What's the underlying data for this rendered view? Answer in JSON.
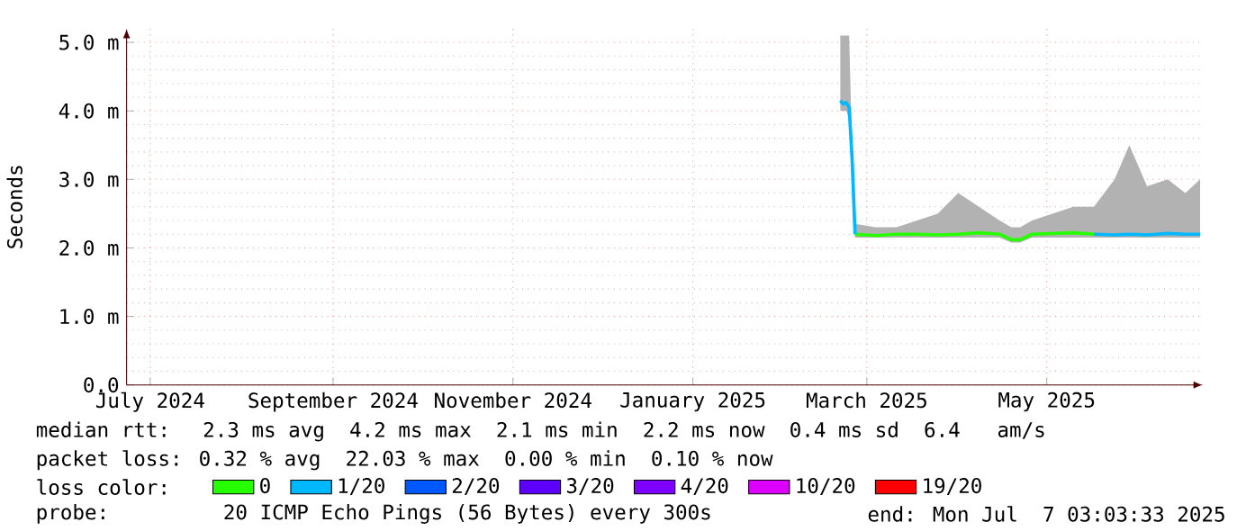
{
  "chart_data": {
    "type": "line",
    "ylabel": "Seconds",
    "legend_title": "loss color:",
    "legend": "bottom",
    "grid": true,
    "marker": "none",
    "line_style": "solid",
    "xlim": [
      "2024-07-07",
      "2025-07-07"
    ],
    "xticks": [
      {
        "value": "2024-07-15",
        "label": "July 2024"
      },
      {
        "value": "2024-09-15",
        "label": "September 2024"
      },
      {
        "value": "2024-11-15",
        "label": "November 2024"
      },
      {
        "value": "2025-01-15",
        "label": "January 2025"
      },
      {
        "value": "2025-03-15",
        "label": "March 2025"
      },
      {
        "value": "2025-05-15",
        "label": "May 2025"
      }
    ],
    "ylim": [
      0,
      5.2
    ],
    "yticks": [
      {
        "value": 0,
        "label": "0.0"
      },
      {
        "value": 1,
        "label": "1.0 m"
      },
      {
        "value": 2,
        "label": "2.0 m"
      },
      {
        "value": 3,
        "label": "3.0 m"
      },
      {
        "value": 4,
        "label": "4.0 m"
      },
      {
        "value": 5,
        "label": "5.0 m"
      }
    ],
    "x": [
      "2025-03-06",
      "2025-03-07",
      "2025-03-08",
      "2025-03-09",
      "2025-03-10",
      "2025-03-11",
      "2025-03-18",
      "2025-03-25",
      "2025-04-01",
      "2025-04-08",
      "2025-04-15",
      "2025-04-22",
      "2025-04-29",
      "2025-05-03",
      "2025-05-06",
      "2025-05-10",
      "2025-05-17",
      "2025-05-24",
      "2025-05-31",
      "2025-06-07",
      "2025-06-12",
      "2025-06-18",
      "2025-06-25",
      "2025-07-01",
      "2025-07-06"
    ],
    "series": [
      {
        "name": "0",
        "color": "#26ff00",
        "values": [
          null,
          null,
          null,
          null,
          null,
          2.2,
          2.18,
          2.2,
          2.2,
          2.19,
          2.2,
          2.22,
          2.2,
          2.12,
          2.12,
          2.2,
          2.21,
          2.22,
          2.2,
          null,
          null,
          null,
          null,
          null,
          null
        ],
        "lower": [
          4.0,
          4.0,
          4.0,
          3.9,
          3.2,
          2.15,
          2.15,
          2.15,
          2.15,
          2.15,
          2.15,
          2.15,
          2.15,
          2.08,
          2.08,
          2.15,
          2.15,
          2.15,
          2.15,
          2.15,
          2.15,
          2.15,
          2.15,
          2.15,
          2.15
        ],
        "upper": [
          5.1,
          5.1,
          5.1,
          5.1,
          3.4,
          2.35,
          2.3,
          2.3,
          2.4,
          2.5,
          2.8,
          2.6,
          2.4,
          2.3,
          2.3,
          2.4,
          2.5,
          2.6,
          2.6,
          3.0,
          3.5,
          2.9,
          3.0,
          2.8,
          3.0
        ]
      },
      {
        "name": "1/20",
        "color": "#00b8ff",
        "values": [
          4.15,
          4.1,
          4.12,
          4.05,
          3.3,
          2.2,
          null,
          null,
          null,
          null,
          null,
          null,
          null,
          null,
          null,
          null,
          null,
          null,
          2.2,
          2.19,
          2.2,
          2.19,
          2.21,
          2.2,
          2.2
        ]
      },
      {
        "name": "2/20",
        "color": "#0059ff",
        "values": [
          null,
          null,
          null,
          null,
          null,
          null,
          null,
          null,
          null,
          null,
          null,
          null,
          null,
          null,
          null,
          null,
          null,
          null,
          null,
          null,
          null,
          null,
          null,
          null,
          null
        ]
      },
      {
        "name": "3/20",
        "color": "#5e00ff",
        "values": [
          null,
          null,
          null,
          null,
          null,
          null,
          null,
          null,
          null,
          null,
          null,
          null,
          null,
          null,
          null,
          null,
          null,
          null,
          null,
          null,
          null,
          null,
          null,
          null,
          null
        ]
      },
      {
        "name": "4/20",
        "color": "#7e00ff",
        "values": [
          null,
          null,
          null,
          null,
          null,
          null,
          null,
          null,
          null,
          null,
          null,
          null,
          null,
          null,
          null,
          null,
          null,
          null,
          null,
          null,
          null,
          null,
          null,
          null,
          null
        ]
      },
      {
        "name": "10/20",
        "color": "#dd00ff",
        "values": [
          null,
          null,
          null,
          null,
          null,
          null,
          null,
          null,
          null,
          null,
          null,
          null,
          null,
          null,
          null,
          null,
          null,
          null,
          null,
          null,
          null,
          null,
          null,
          null,
          null
        ]
      },
      {
        "name": "19/20",
        "color": "#ff0000",
        "values": [
          null,
          null,
          null,
          null,
          null,
          null,
          null,
          null,
          null,
          null,
          null,
          null,
          null,
          null,
          null,
          null,
          null,
          null,
          null,
          null,
          null,
          null,
          null,
          null,
          null
        ]
      }
    ],
    "annotations": [
      "median rtt:  2.3 ms avg  4.2 ms max  2.1 ms min  2.2 ms now  0.4 ms sd  6.4   am/s",
      "packet loss: 0.32 % avg  22.03 % max  0.00 % min  0.10 % now",
      "probe:       20 ICMP Echo Pings (56 Bytes) every 300s",
      "end: Mon Jul  7 03:03:33 2025"
    ]
  }
}
